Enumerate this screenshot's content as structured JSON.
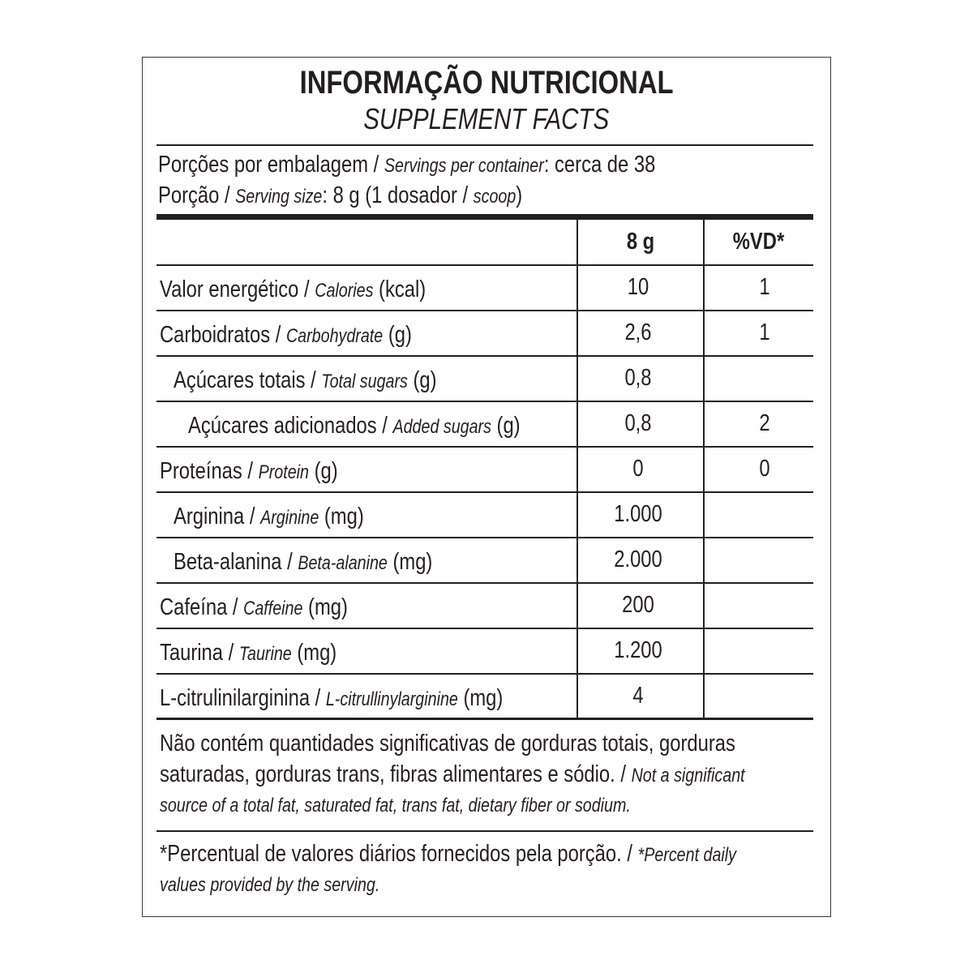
{
  "title": "INFORMAÇÃO NUTRICIONAL",
  "subtitle": "SUPPLEMENT FACTS",
  "servings": {
    "pt": "Porções por embalagem / ",
    "en": "Servings per container",
    "rest": ": cerca de 38"
  },
  "serving_size": {
    "pt": "Porção / ",
    "en": "Serving size",
    "rest": ": 8 g (1 dosador / ",
    "en2": "scoop",
    "end": ")"
  },
  "header": {
    "col1": "8 g",
    "col2": "%VD*"
  },
  "rows": [
    {
      "pt": "Valor energético / ",
      "en": "Calories",
      "unit": " (kcal)",
      "value": "10",
      "vd": "1"
    },
    {
      "pt": "Carboidratos / ",
      "en": "Carbohydrate",
      "unit": " (g)",
      "value": "2,6",
      "vd": "1"
    },
    {
      "pt": "Açúcares totais / ",
      "en": "Total sugars",
      "unit": " (g)",
      "value": "0,8",
      "vd": ""
    },
    {
      "pt": "Açúcares adicionados / ",
      "en": "Added sugars",
      "unit": " (g)",
      "value": "0,8",
      "vd": "2"
    },
    {
      "pt": "Proteínas / ",
      "en": "Protein",
      "unit": " (g)",
      "value": "0",
      "vd": "0"
    },
    {
      "pt": "Arginina / ",
      "en": "Arginine",
      "unit": " (mg)",
      "value": "1.000",
      "vd": ""
    },
    {
      "pt": "Beta-alanina / ",
      "en": "Beta-alanine",
      "unit": " (mg)",
      "value": "2.000",
      "vd": ""
    },
    {
      "pt": "Cafeína / ",
      "en": "Caffeine",
      "unit": " (mg)",
      "value": "200",
      "vd": ""
    },
    {
      "pt": "Taurina / ",
      "en": "Taurine",
      "unit": " (mg)",
      "value": "1.200",
      "vd": ""
    },
    {
      "pt": "L-citrulinilarginina / ",
      "en": "L-citrullinylarginine",
      "unit": " (mg)",
      "value": "4",
      "vd": ""
    }
  ],
  "footnote1": {
    "line1": "Não contém quantidades significativas de gorduras totais, gorduras",
    "line2": "saturadas, gorduras trans, fibras alimentares e sódio. / ",
    "line2_en": "Not a significant",
    "line3_en": "source of a total fat, saturated fat, trans fat, dietary fiber or sodium."
  },
  "footnote2": {
    "line1": "*Percentual de valores diários fornecidos pela porção. / ",
    "line1_en": "*Percent daily",
    "line2_en": "values provided by the serving."
  }
}
